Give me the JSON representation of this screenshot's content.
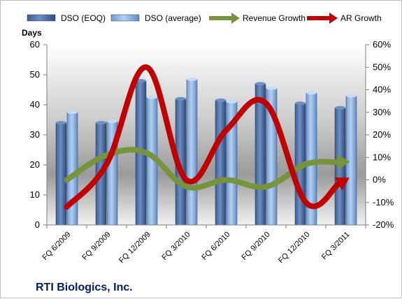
{
  "chart_data": {
    "type": "bar",
    "title": "RTI Biologics, Inc.",
    "ylabel": "Days",
    "ylim": [
      0,
      60
    ],
    "y_ticks": [
      0,
      10,
      20,
      30,
      40,
      50,
      60
    ],
    "y2lim": [
      -20,
      60
    ],
    "y2_ticks": [
      "-20%",
      "-10%",
      "0%",
      "10%",
      "20%",
      "30%",
      "40%",
      "50%",
      "60%"
    ],
    "categories": [
      "FQ 6/2009",
      "FQ 9/2009",
      "FQ 12/2009",
      "FQ 3/2010",
      "FQ 6/2010",
      "FQ 9/2010",
      "FQ 12/2010",
      "FQ 3/2011"
    ],
    "series": [
      {
        "name": "DSO (EOQ)",
        "type": "bar",
        "axis": "left",
        "color": "#4F6FA3",
        "values": [
          34,
          34,
          48,
          42,
          41.5,
          47,
          40.5,
          39
        ]
      },
      {
        "name": "DSO (average)",
        "type": "bar",
        "axis": "left",
        "color": "#8DB4E2",
        "values": [
          37.5,
          34.5,
          42.5,
          48.5,
          41,
          45.5,
          44,
          43
        ]
      },
      {
        "name": "Revenue Growth",
        "type": "line",
        "axis": "right",
        "unit": "%",
        "color": "#77933C",
        "values": [
          0,
          11,
          12,
          -3,
          0,
          -3,
          7,
          8
        ]
      },
      {
        "name": "AR Growth",
        "type": "line",
        "axis": "right",
        "unit": "%",
        "color": "#C00000",
        "values": [
          -12,
          7,
          50,
          0,
          22,
          34,
          -10,
          0
        ]
      }
    ],
    "legend_position": "top",
    "grid": false
  }
}
